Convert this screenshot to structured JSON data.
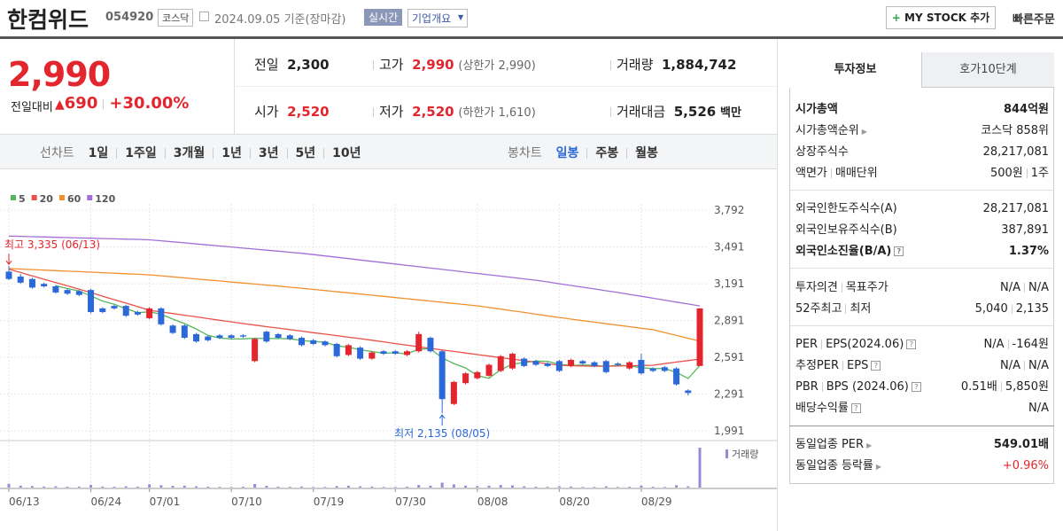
{
  "header": {
    "name": "한컴위드",
    "code": "054920",
    "market": "코스닥",
    "date": "2024.09.05 기준(장마감)",
    "realtime": "실시간",
    "overview": "기업개요",
    "mystock": "MY STOCK 추가",
    "quick_order": "빠른주문"
  },
  "price": {
    "current": "2,990",
    "change_label": "전일대비",
    "change": "690",
    "change_pct": "+30.00%",
    "prev": {
      "label": "전일",
      "value": "2,300"
    },
    "high": {
      "label": "고가",
      "value": "2,990",
      "note": "(상한가 2,990)"
    },
    "volume": {
      "label": "거래량",
      "value": "1,884,742"
    },
    "open": {
      "label": "시가",
      "value": "2,520"
    },
    "low": {
      "label": "저가",
      "value": "2,520",
      "note": "(하한가 1,610)"
    },
    "amount": {
      "label": "거래대금",
      "value": "5,526",
      "unit": "백만"
    }
  },
  "tabs": {
    "line_label": "선차트",
    "line": [
      "1일",
      "1주일",
      "3개월",
      "1년",
      "3년",
      "5년",
      "10년"
    ],
    "candle_label": "봉차트",
    "candle": [
      "일봉",
      "주봉",
      "월봉"
    ]
  },
  "chart_data": {
    "type": "candlestick",
    "categories": [
      "06/13",
      null,
      null,
      null,
      null,
      null,
      null,
      "06/24",
      null,
      null,
      null,
      null,
      "07/01",
      null,
      null,
      null,
      null,
      null,
      null,
      "07/10",
      null,
      null,
      null,
      null,
      null,
      null,
      "07/19",
      null,
      null,
      null,
      null,
      null,
      null,
      "07/30",
      null,
      null,
      null,
      null,
      null,
      null,
      "08/08",
      null,
      null,
      null,
      null,
      null,
      null,
      "08/20",
      null,
      null,
      null,
      null,
      null,
      null,
      "08/29",
      null,
      null,
      null,
      null,
      null
    ],
    "ohlc": [
      [
        3290,
        3335,
        3220,
        3230
      ],
      [
        3250,
        3270,
        3190,
        3200
      ],
      [
        3230,
        3240,
        3150,
        3160
      ],
      [
        3190,
        3200,
        3160,
        3170
      ],
      [
        3170,
        3180,
        3110,
        3120
      ],
      [
        3140,
        3150,
        3100,
        3110
      ],
      [
        3130,
        3140,
        3090,
        3100
      ],
      [
        3140,
        3150,
        2950,
        2960
      ],
      [
        2990,
        3000,
        2950,
        2960
      ],
      [
        3010,
        3020,
        2980,
        2990
      ],
      [
        3010,
        3020,
        2920,
        2930
      ],
      [
        2960,
        2970,
        2930,
        2940
      ],
      [
        2910,
        3000,
        2900,
        2990
      ],
      [
        2990,
        3000,
        2850,
        2860
      ],
      [
        2850,
        2860,
        2780,
        2790
      ],
      [
        2850,
        2860,
        2740,
        2750
      ],
      [
        2780,
        2790,
        2710,
        2720
      ],
      [
        2760,
        2770,
        2720,
        2730
      ],
      [
        2770,
        2780,
        2740,
        2750
      ],
      [
        2770,
        2780,
        2740,
        2750
      ],
      [
        2770,
        2780,
        2750,
        2760
      ],
      [
        2560,
        2750,
        2550,
        2740
      ],
      [
        2800,
        2810,
        2710,
        2720
      ],
      [
        2780,
        2790,
        2740,
        2750
      ],
      [
        2770,
        2780,
        2730,
        2740
      ],
      [
        2750,
        2760,
        2680,
        2690
      ],
      [
        2730,
        2740,
        2690,
        2700
      ],
      [
        2720,
        2730,
        2680,
        2690
      ],
      [
        2700,
        2710,
        2590,
        2600
      ],
      [
        2610,
        2700,
        2600,
        2690
      ],
      [
        2670,
        2680,
        2570,
        2580
      ],
      [
        2580,
        2640,
        2570,
        2630
      ],
      [
        2640,
        2650,
        2610,
        2620
      ],
      [
        2640,
        2650,
        2610,
        2620
      ],
      [
        2610,
        2650,
        2600,
        2640
      ],
      [
        2640,
        2800,
        2630,
        2780
      ],
      [
        2750,
        2760,
        2630,
        2640
      ],
      [
        2640,
        2650,
        2135,
        2250
      ],
      [
        2210,
        2400,
        2200,
        2390
      ],
      [
        2380,
        2470,
        2370,
        2460
      ],
      [
        2420,
        2480,
        2410,
        2470
      ],
      [
        2440,
        2540,
        2430,
        2530
      ],
      [
        2480,
        2610,
        2470,
        2600
      ],
      [
        2500,
        2630,
        2490,
        2620
      ],
      [
        2580,
        2590,
        2510,
        2520
      ],
      [
        2560,
        2570,
        2520,
        2530
      ],
      [
        2540,
        2550,
        2510,
        2520
      ],
      [
        2560,
        2570,
        2470,
        2480
      ],
      [
        2520,
        2580,
        2510,
        2570
      ],
      [
        2560,
        2570,
        2530,
        2540
      ],
      [
        2550,
        2560,
        2510,
        2520
      ],
      [
        2560,
        2570,
        2460,
        2470
      ],
      [
        2540,
        2550,
        2520,
        2530
      ],
      [
        2500,
        2560,
        2490,
        2550
      ],
      [
        2570,
        2620,
        2450,
        2460
      ],
      [
        2500,
        2510,
        2470,
        2480
      ],
      [
        2510,
        2520,
        2470,
        2480
      ],
      [
        2500,
        2510,
        2360,
        2370
      ],
      [
        2320,
        2330,
        2280,
        2300
      ],
      [
        2520,
        2990,
        2520,
        2990
      ]
    ],
    "up_color": "#e3262e",
    "down_color": "#2b68d8",
    "series": [
      {
        "name": "5",
        "color": "#56b65a",
        "values": [
          null,
          null,
          null,
          null,
          3176,
          3152,
          3132,
          3092,
          3050,
          3024,
          2988,
          2956,
          2962,
          2942,
          2902,
          2866,
          2822,
          2770,
          2748,
          2740,
          2742,
          2746,
          2744,
          2744,
          2742,
          2728,
          2720,
          2714,
          2684,
          2674,
          2652,
          2638,
          2624,
          2628,
          2618,
          2658,
          2660,
          2586,
          2540,
          2504,
          2442,
          2420,
          2490,
          2536,
          2548,
          2560,
          2558,
          2534,
          2524,
          2528,
          2526,
          2516,
          2526,
          2522,
          2506,
          2498,
          2500,
          2468,
          2418,
          2524
        ]
      },
      {
        "name": "20",
        "color": "#ea5148",
        "values": [
          3310,
          3283,
          3255,
          3228,
          3201,
          3174,
          3146,
          3119,
          3090,
          3061,
          3033,
          3004,
          2975,
          2961,
          2948,
          2934,
          2921,
          2907,
          2893,
          2880,
          2866,
          2854,
          2841,
          2829,
          2817,
          2805,
          2792,
          2780,
          2768,
          2755,
          2743,
          2730,
          2717,
          2703,
          2690,
          2677,
          2664,
          2651,
          2639,
          2626,
          2613,
          2601,
          2588,
          2576,
          2563,
          2551,
          2538,
          2526,
          2522,
          2520,
          2518,
          2518,
          2520,
          2522,
          2524,
          2526,
          2539,
          2552,
          2564,
          2577
        ]
      },
      {
        "name": "60",
        "color": "#f3902e",
        "values": [
          3315,
          3311,
          3307,
          3302,
          3298,
          3294,
          3290,
          3286,
          3281,
          3277,
          3273,
          3268,
          3264,
          3256,
          3247,
          3239,
          3231,
          3222,
          3214,
          3205,
          3197,
          3189,
          3180,
          3172,
          3163,
          3155,
          3145,
          3136,
          3126,
          3117,
          3107,
          3098,
          3088,
          3078,
          3069,
          3059,
          3050,
          3040,
          3030,
          3021,
          3011,
          2997,
          2984,
          2970,
          2957,
          2943,
          2929,
          2916,
          2902,
          2890,
          2878,
          2865,
          2853,
          2841,
          2828,
          2816,
          2793,
          2769,
          2746,
          2722
        ]
      },
      {
        "name": "120",
        "color": "#a06fd8",
        "values": [
          3580,
          3578,
          3575,
          3573,
          3570,
          3568,
          3565,
          3563,
          3560,
          3558,
          3555,
          3553,
          3550,
          3542,
          3533,
          3525,
          3516,
          3508,
          3499,
          3491,
          3482,
          3474,
          3465,
          3457,
          3448,
          3440,
          3429,
          3418,
          3407,
          3396,
          3385,
          3374,
          3363,
          3352,
          3341,
          3330,
          3319,
          3308,
          3297,
          3286,
          3275,
          3264,
          3253,
          3242,
          3231,
          3220,
          3206,
          3191,
          3177,
          3163,
          3149,
          3134,
          3120,
          3104,
          3089,
          3073,
          3057,
          3041,
          3026,
          3010
        ]
      }
    ],
    "volume": {
      "name": "거래량",
      "color": "#9c88d8",
      "values": [
        180000,
        90000,
        70000,
        50000,
        60000,
        40000,
        45000,
        120000,
        50000,
        40000,
        60000,
        40000,
        150000,
        110000,
        80000,
        90000,
        60000,
        40000,
        35000,
        30000,
        40000,
        170000,
        80000,
        40000,
        35000,
        50000,
        30000,
        30000,
        70000,
        90000,
        60000,
        50000,
        30000,
        30000,
        40000,
        120000,
        90000,
        230000,
        150000,
        90000,
        70000,
        90000,
        120000,
        100000,
        60000,
        40000,
        35000,
        60000,
        50000,
        30000,
        30000,
        60000,
        30000,
        40000,
        90000,
        40000,
        30000,
        110000,
        60000,
        1884742
      ]
    },
    "ylim": [
      1991,
      3792
    ],
    "yticks": [
      {
        "value": 3792,
        "label": "3,792"
      },
      {
        "value": 3491,
        "label": "3,491"
      },
      {
        "value": 3191,
        "label": "3,191"
      },
      {
        "value": 2891,
        "label": "2,891"
      },
      {
        "value": 2591,
        "label": "2,591"
      },
      {
        "value": 2291,
        "label": "2,291"
      },
      {
        "value": 1991,
        "label": "1,991"
      }
    ],
    "grid": true,
    "high_label": "최고 3,335 (06/13)",
    "low_label": "최저 2,135 (08/05)"
  },
  "info": {
    "tabs": [
      "투자정보",
      "호가10단계"
    ],
    "rows": [
      {
        "label": "시가총액",
        "value": "844억원"
      },
      {
        "label": "시가총액순위",
        "value": "코스닥 858위"
      },
      {
        "label": "상장주식수",
        "value": "28,217,081"
      },
      {
        "label": [
          "액면가",
          "매매단위"
        ],
        "value": [
          "500원",
          "1주"
        ]
      },
      {
        "label": "외국인한도주식수(A)",
        "value": "28,217,081"
      },
      {
        "label": "외국인보유주식수(B)",
        "value": "387,891"
      },
      {
        "label": "외국인소진율(B/A)",
        "value": "1.37%"
      },
      {
        "label": [
          "투자의견",
          "목표주가"
        ],
        "value": [
          "N/A",
          "N/A"
        ]
      },
      {
        "label": [
          "52주최고",
          "최저"
        ],
        "value": [
          "5,040",
          "2,135"
        ]
      },
      {
        "label": [
          "PER",
          "EPS(2024.06)"
        ],
        "value": [
          "N/A",
          "-164원"
        ]
      },
      {
        "label": [
          "추정PER",
          "EPS"
        ],
        "value": [
          "N/A",
          "N/A"
        ]
      },
      {
        "label": [
          "PBR",
          "BPS (2024.06)"
        ],
        "value": [
          "0.51배",
          "5,850원"
        ]
      },
      {
        "label": "배당수익률",
        "value": "N/A"
      },
      {
        "label": "동일업종 PER",
        "value": "549.01배"
      },
      {
        "label": "동일업종 등락률",
        "value": "+0.96%"
      }
    ]
  }
}
